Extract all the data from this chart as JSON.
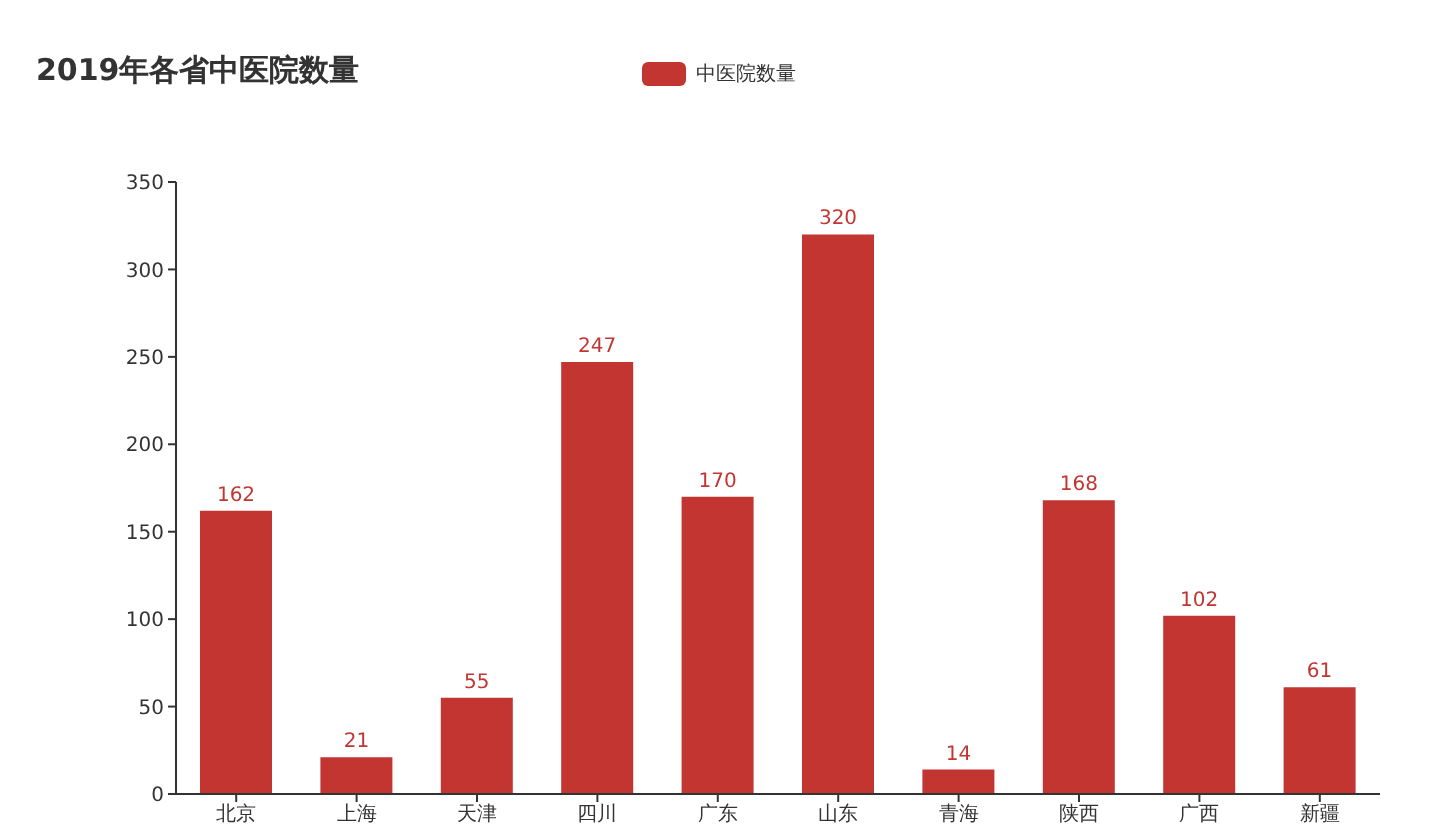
{
  "chart_data": {
    "type": "bar",
    "title": "2019年各省中医院数量",
    "categories": [
      "北京",
      "上海",
      "天津",
      "四川",
      "广东",
      "山东",
      "青海",
      "陕西",
      "广西",
      "新疆"
    ],
    "series": [
      {
        "name": "中医院数量",
        "color": "#c23531",
        "values": [
          162,
          21,
          55,
          247,
          170,
          320,
          14,
          168,
          102,
          61
        ]
      }
    ],
    "ylim": [
      0,
      350
    ],
    "yticks": [
      0,
      50,
      100,
      150,
      200,
      250,
      300,
      350
    ],
    "grid": false,
    "legend": "top",
    "data_labels": true
  }
}
